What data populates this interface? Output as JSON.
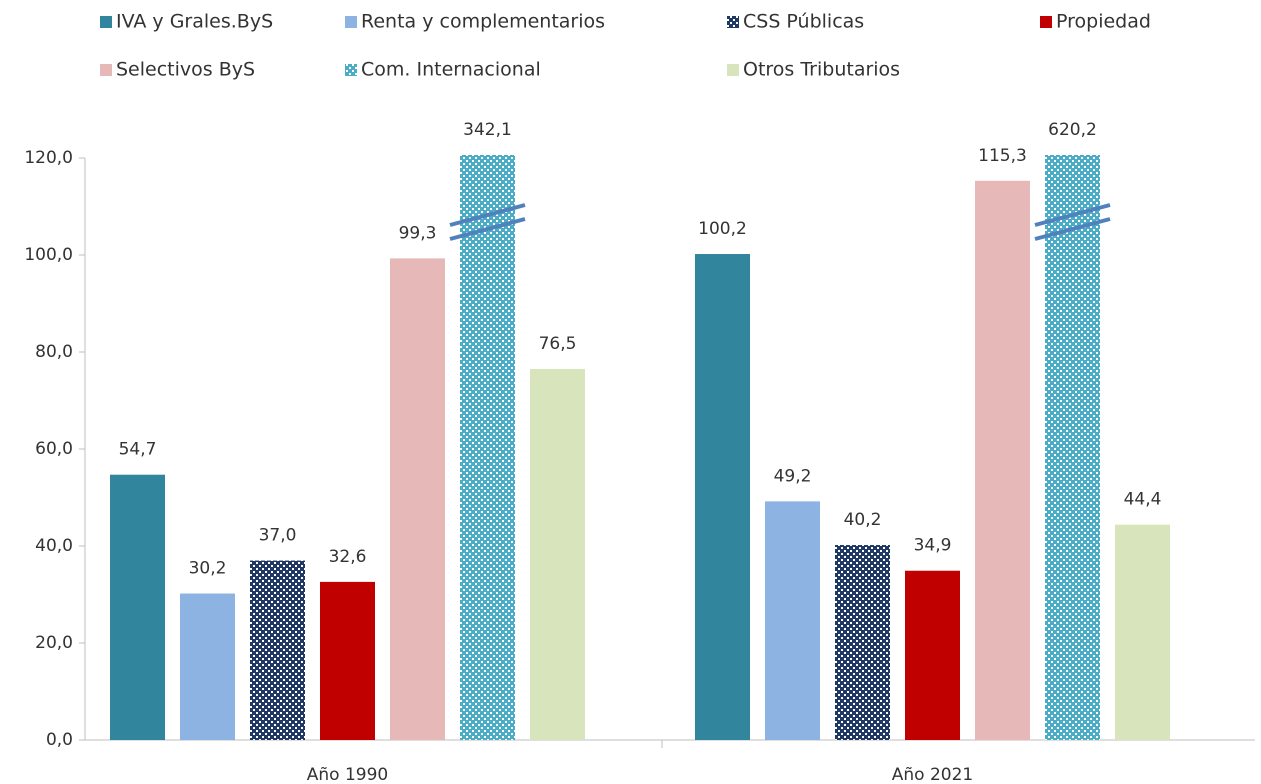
{
  "chart_data": {
    "type": "bar",
    "categories": [
      "Año 1990",
      "Año 2021"
    ],
    "series": [
      {
        "name": "IVA y Grales.ByS",
        "color": "#31859c",
        "values": [
          54.7,
          100.2
        ],
        "value_labels": [
          "54,7",
          "100,2"
        ]
      },
      {
        "name": "Renta y complementarios",
        "color": "#8db3e2",
        "values": [
          30.2,
          49.2
        ],
        "value_labels": [
          "30,2",
          "49,2"
        ]
      },
      {
        "name": "CSS Públicas",
        "color": "#1f3864",
        "pattern": "dots",
        "values": [
          37.0,
          40.2
        ],
        "value_labels": [
          "37,0",
          "40,2"
        ]
      },
      {
        "name": "Propiedad",
        "color": "#c00000",
        "values": [
          32.6,
          34.9
        ],
        "value_labels": [
          "32,6",
          "34,9"
        ]
      },
      {
        "name": "Selectivos ByS",
        "color": "#e6b9b8",
        "values": [
          99.3,
          115.3
        ],
        "value_labels": [
          "99,3",
          "115,3"
        ]
      },
      {
        "name": "Com. Internacional",
        "color": "#4bacc6",
        "pattern": "dots",
        "values": [
          342.1,
          620.2
        ],
        "value_labels": [
          "342,1",
          "620,2"
        ]
      },
      {
        "name": "Otros Tributarios",
        "color": "#d7e4bc",
        "values": [
          76.5,
          44.4
        ],
        "value_labels": [
          "76,5",
          "44,4"
        ]
      }
    ],
    "ylim": [
      0,
      120
    ],
    "yticks": [
      {
        "value": 0,
        "label": "0,0"
      },
      {
        "value": 20,
        "label": "20,0"
      },
      {
        "value": 40,
        "label": "40,0"
      },
      {
        "value": 60,
        "label": "60,0"
      },
      {
        "value": 80,
        "label": "80,0"
      },
      {
        "value": 100,
        "label": "100,0"
      },
      {
        "value": 120,
        "label": "120,0"
      }
    ],
    "legend": "top"
  }
}
